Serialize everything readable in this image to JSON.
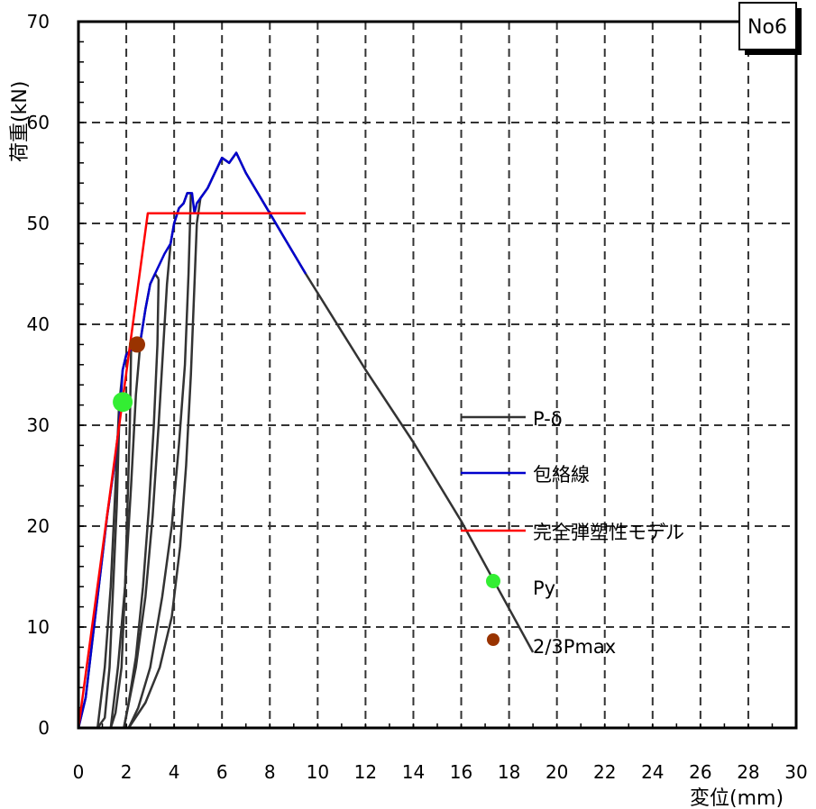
{
  "chart_data": {
    "type": "line",
    "label": "No6",
    "xlabel": "変位(mm)",
    "ylabel": "荷重(kN)",
    "xlim": [
      0,
      30
    ],
    "ylim": [
      0,
      70
    ],
    "x_ticks": [
      0,
      2,
      4,
      6,
      8,
      10,
      12,
      14,
      16,
      18,
      20,
      22,
      24,
      26,
      28,
      30
    ],
    "y_ticks": [
      0,
      10,
      20,
      30,
      40,
      50,
      60,
      70
    ],
    "grid": true,
    "legend_position": "right",
    "series": [
      {
        "name": "P-δ",
        "color": "#333333",
        "segments": [
          [
            [
              0,
              0
            ],
            [
              0.3,
              3
            ],
            [
              0.6,
              9
            ],
            [
              0.9,
              15
            ],
            [
              1.2,
              21
            ],
            [
              1.5,
              26
            ],
            [
              1.7,
              30
            ]
          ],
          [
            [
              1.7,
              30
            ],
            [
              1.6,
              22
            ],
            [
              1.45,
              14
            ],
            [
              1.3,
              6
            ],
            [
              1.1,
              1
            ],
            [
              0.8,
              0
            ]
          ],
          [
            [
              0.8,
              0
            ],
            [
              1.1,
              6
            ],
            [
              1.35,
              14
            ],
            [
              1.55,
              24
            ],
            [
              1.7,
              32
            ],
            [
              1.85,
              35.5
            ],
            [
              2.0,
              37
            ],
            [
              2.2,
              37.5
            ]
          ],
          [
            [
              2.2,
              37.5
            ],
            [
              2.15,
              30
            ],
            [
              2.05,
              22
            ],
            [
              1.95,
              14
            ],
            [
              1.8,
              6
            ],
            [
              1.55,
              1.5
            ],
            [
              1.35,
              0
            ]
          ],
          [
            [
              1.35,
              0
            ],
            [
              1.65,
              6
            ],
            [
              1.95,
              14
            ],
            [
              2.2,
              24
            ],
            [
              2.4,
              33
            ],
            [
              2.6,
              38.5
            ],
            [
              2.8,
              41.5
            ],
            [
              3.0,
              44
            ],
            [
              3.2,
              45
            ],
            [
              3.35,
              44.5
            ]
          ],
          [
            [
              3.35,
              44.5
            ],
            [
              3.3,
              38
            ],
            [
              3.15,
              30
            ],
            [
              2.95,
              22
            ],
            [
              2.7,
              14
            ],
            [
              2.4,
              7
            ],
            [
              2.1,
              2.5
            ],
            [
              1.9,
              0
            ]
          ],
          [
            [
              1.9,
              0
            ],
            [
              2.4,
              6
            ],
            [
              2.8,
              13
            ],
            [
              3.1,
              21
            ],
            [
              3.35,
              30
            ],
            [
              3.55,
              38
            ],
            [
              3.7,
              44
            ],
            [
              3.85,
              48
            ],
            [
              4.0,
              50
            ],
            [
              4.2,
              51.5
            ],
            [
              4.4,
              52
            ],
            [
              4.55,
              53
            ],
            [
              4.7,
              53
            ]
          ],
          [
            [
              4.7,
              53
            ],
            [
              4.6,
              45
            ],
            [
              4.45,
              36
            ],
            [
              4.2,
              28
            ],
            [
              3.9,
              20
            ],
            [
              3.5,
              13
            ],
            [
              3.0,
              6
            ],
            [
              2.5,
              2
            ],
            [
              2.1,
              0
            ]
          ],
          [
            [
              2.1,
              0
            ],
            [
              2.8,
              2.5
            ],
            [
              3.4,
              6
            ],
            [
              3.9,
              11
            ],
            [
              4.25,
              18
            ],
            [
              4.5,
              26
            ],
            [
              4.7,
              35
            ],
            [
              4.85,
              44
            ],
            [
              4.95,
              50
            ],
            [
              5.1,
              52.5
            ],
            [
              5.4,
              53.5
            ],
            [
              5.7,
              55
            ],
            [
              6.0,
              56.5
            ],
            [
              6.3,
              56
            ],
            [
              6.6,
              57
            ],
            [
              7.0,
              55
            ],
            [
              7.5,
              53
            ],
            [
              8.0,
              51
            ],
            [
              8.5,
              49
            ],
            [
              9.0,
              47
            ],
            [
              9.5,
              45
            ],
            [
              12,
              35.5
            ],
            [
              14,
              28.3
            ],
            [
              16,
              20.5
            ],
            [
              17.5,
              14
            ],
            [
              19,
              7.5
            ]
          ]
        ]
      },
      {
        "name": "包絡線",
        "color": "#0000cc",
        "segments": [
          [
            [
              0,
              0
            ],
            [
              0.3,
              3
            ],
            [
              0.6,
              9
            ],
            [
              0.9,
              15
            ],
            [
              1.2,
              21
            ],
            [
              1.5,
              26
            ],
            [
              1.7,
              30
            ],
            [
              1.85,
              35.5
            ],
            [
              2.0,
              37
            ],
            [
              2.2,
              37.5
            ],
            [
              2.4,
              38
            ],
            [
              2.6,
              38.5
            ],
            [
              2.8,
              41.5
            ],
            [
              3.0,
              44
            ],
            [
              3.2,
              45
            ],
            [
              3.4,
              46
            ],
            [
              3.6,
              47
            ],
            [
              3.85,
              48
            ],
            [
              4.0,
              50
            ],
            [
              4.2,
              51.5
            ],
            [
              4.4,
              52
            ],
            [
              4.55,
              53
            ],
            [
              4.75,
              53
            ],
            [
              4.85,
              51
            ],
            [
              4.95,
              52
            ],
            [
              5.1,
              52.5
            ],
            [
              5.4,
              53.5
            ],
            [
              5.7,
              55
            ],
            [
              6.0,
              56.5
            ],
            [
              6.3,
              56
            ],
            [
              6.6,
              57
            ],
            [
              7.0,
              55
            ],
            [
              7.5,
              53
            ],
            [
              8.0,
              51
            ],
            [
              8.5,
              49
            ],
            [
              9.0,
              47
            ],
            [
              9.5,
              45
            ]
          ]
        ]
      },
      {
        "name": "完全弾塑性モデル",
        "color": "#ff0000",
        "segments": [
          [
            [
              0,
              0
            ],
            [
              2.9,
              51
            ],
            [
              9.5,
              51
            ]
          ]
        ]
      },
      {
        "name": "Py",
        "color": "#33ee33",
        "marker": true,
        "points": [
          [
            1.85,
            32.3
          ]
        ]
      },
      {
        "name": "2/3Pmax",
        "color": "#993300",
        "marker": true,
        "points": [
          [
            2.45,
            38
          ]
        ]
      }
    ]
  }
}
